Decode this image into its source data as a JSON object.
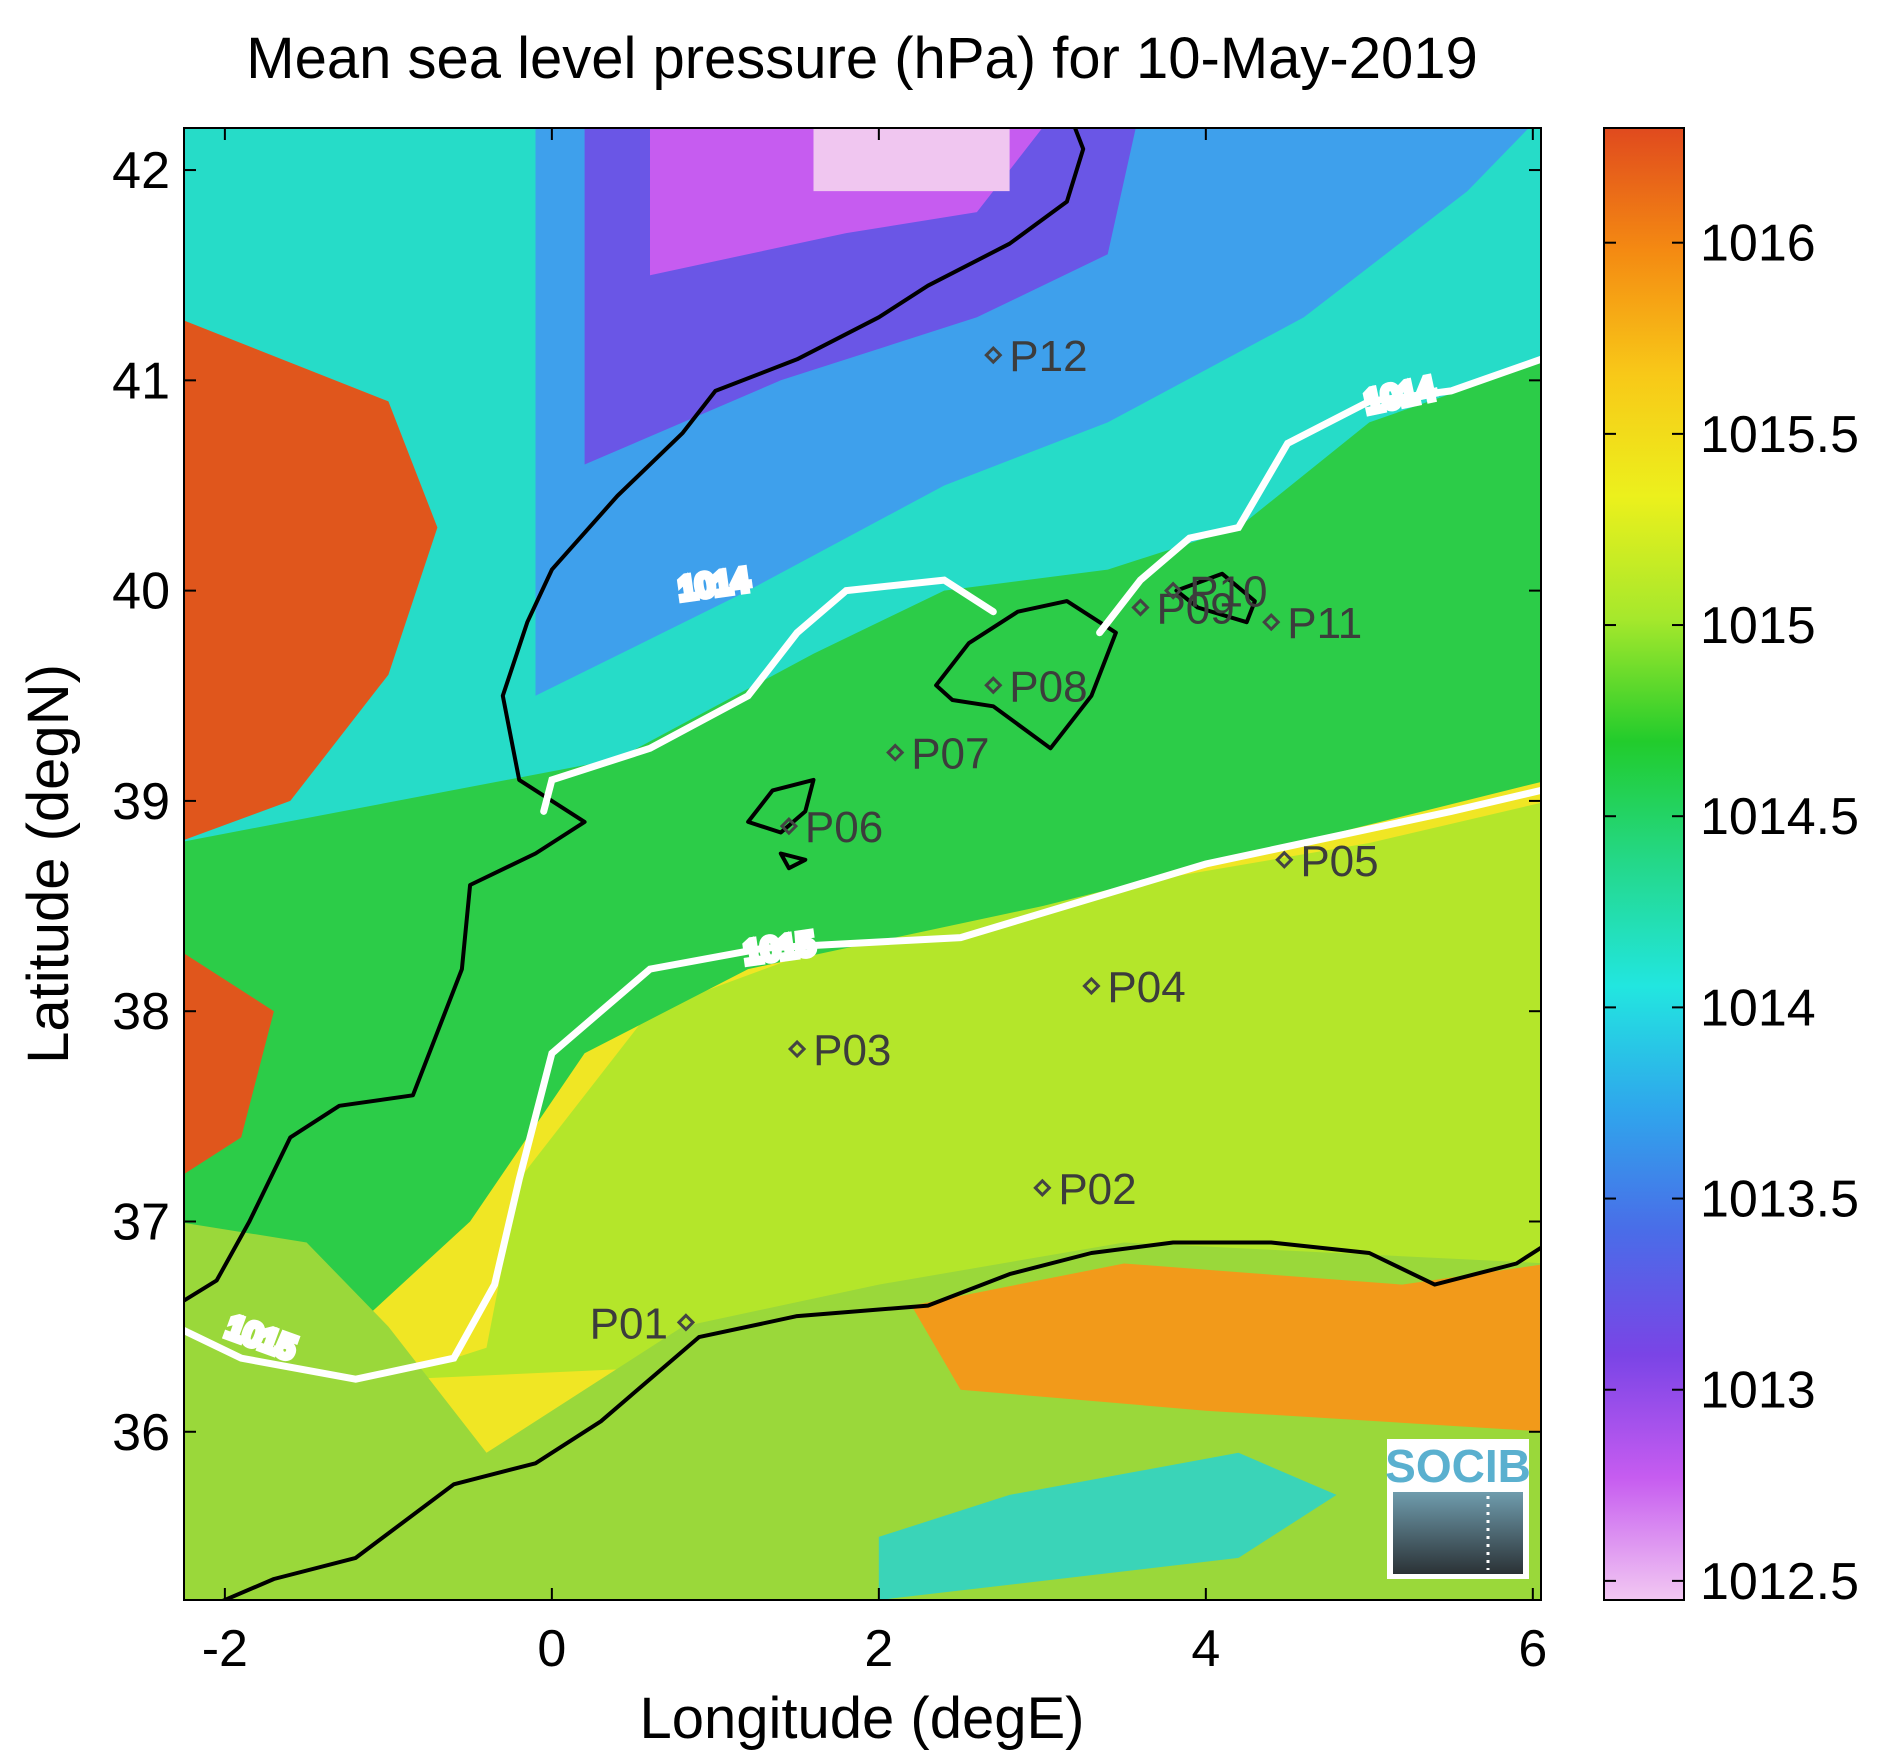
{
  "title": "Mean sea level pressure (hPa) for 10-May-2019",
  "xaxis": {
    "label": "Longitude (degE)",
    "ticks": [
      -2,
      0,
      2,
      4,
      6
    ],
    "tick_labels": [
      "-2",
      "0",
      "2",
      "4",
      "6"
    ],
    "range": [
      -2.25,
      6.05
    ]
  },
  "yaxis": {
    "label": "Latitude (degN)",
    "ticks": [
      36,
      37,
      38,
      39,
      40,
      41,
      42
    ],
    "tick_labels": [
      "36",
      "37",
      "38",
      "39",
      "40",
      "41",
      "42"
    ],
    "range": [
      35.2,
      42.2
    ]
  },
  "colorbar": {
    "ticks": [
      1012.5,
      1013,
      1013.5,
      1014,
      1014.5,
      1015,
      1015.5,
      1016
    ],
    "tick_labels": [
      "1012.5",
      "1013",
      "1013.5",
      "1014",
      "1014.5",
      "1015",
      "1015.5",
      "1016"
    ],
    "range": [
      1012.45,
      1016.3
    ],
    "colormap": [
      "#f2c8f2",
      "#c65cf0",
      "#7a44e6",
      "#4a6ce8",
      "#2fa6ec",
      "#22e6e0",
      "#24d88a",
      "#22cc2c",
      "#a6e82c",
      "#ecf01c",
      "#f8c818",
      "#f48a12",
      "#e04a1e"
    ]
  },
  "stations": [
    {
      "id": "P01",
      "lon": 0.82,
      "lat": 36.52
    },
    {
      "id": "P02",
      "lon": 3.0,
      "lat": 37.16
    },
    {
      "id": "P03",
      "lon": 1.5,
      "lat": 37.82
    },
    {
      "id": "P04",
      "lon": 3.3,
      "lat": 38.12
    },
    {
      "id": "P05",
      "lon": 4.48,
      "lat": 38.72
    },
    {
      "id": "P06",
      "lon": 1.45,
      "lat": 38.88
    },
    {
      "id": "P07",
      "lon": 2.1,
      "lat": 39.23
    },
    {
      "id": "P08",
      "lon": 2.7,
      "lat": 39.55
    },
    {
      "id": "P09",
      "lon": 3.6,
      "lat": 39.92
    },
    {
      "id": "P10",
      "lon": 3.8,
      "lat": 40.0
    },
    {
      "id": "P11",
      "lon": 4.4,
      "lat": 39.85
    },
    {
      "id": "P12",
      "lon": 2.7,
      "lat": 41.12
    }
  ],
  "contours": [
    {
      "level": 1014,
      "label": "1014"
    },
    {
      "level": 1015,
      "label": "1015"
    }
  ],
  "logo": "SOCIB",
  "colors": {
    "coastline": "#000000",
    "contour": "#ffffff",
    "station_marker": "#444444"
  }
}
